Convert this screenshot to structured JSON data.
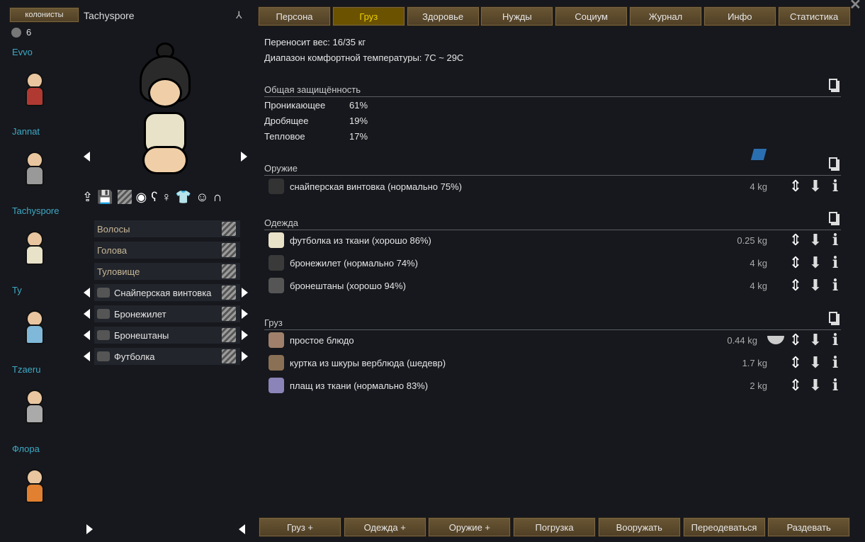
{
  "left": {
    "colonists_button": "колонисты",
    "count": "6",
    "colonists": [
      "Evvo",
      "Jannat",
      "Tachyspore",
      "Ty",
      "Tzaeru",
      "Флора"
    ]
  },
  "pawn": {
    "name": "Tachyspore",
    "slots": [
      {
        "label": "Волосы",
        "equipped": false
      },
      {
        "label": "Голова",
        "equipped": false
      },
      {
        "label": "Туловище",
        "equipped": false
      },
      {
        "label": "Снайперская винтовка",
        "equipped": true
      },
      {
        "label": "Бронежилет",
        "equipped": true
      },
      {
        "label": "Бронештаны",
        "equipped": true
      },
      {
        "label": "Футболка",
        "equipped": true
      }
    ]
  },
  "tabs": [
    {
      "label": "Персона"
    },
    {
      "label": "Груз",
      "active": true
    },
    {
      "label": "Здоровье"
    },
    {
      "label": "Нужды"
    },
    {
      "label": "Социум"
    },
    {
      "label": "Журнал"
    },
    {
      "label": "Инфо"
    },
    {
      "label": "Статистика"
    }
  ],
  "gear": {
    "carry": "Переносит вес: 16/35 кг",
    "comfort": "Диапазон комфортной температуры: 7C ~ 29C",
    "armor_title": "Общая защищённость",
    "armor": [
      {
        "label": "Проникающее",
        "value": "61%"
      },
      {
        "label": "Дробящее",
        "value": "19%"
      },
      {
        "label": "Тепловое",
        "value": "17%"
      }
    ],
    "weapons_title": "Оружие",
    "weapons": [
      {
        "name": "снайперская винтовка (нормально 75%)",
        "weight": "4 kg"
      }
    ],
    "apparel_title": "Одежда",
    "apparel": [
      {
        "name": "футболка из ткани (хорошо 86%)",
        "weight": "0.25 kg",
        "color": "#e8e2c8"
      },
      {
        "name": "бронежилет (нормально 74%)",
        "weight": "4 kg",
        "color": "#3a3a3a"
      },
      {
        "name": "бронештаны (хорошо 94%)",
        "weight": "4 kg",
        "color": "#555"
      }
    ],
    "inventory_title": "Груз",
    "inventory": [
      {
        "name": "простое блюдо",
        "weight": "0.44 kg",
        "color": "#a0806a"
      },
      {
        "name": "куртка из шкуры верблюда (шедевр)",
        "weight": "1.7 kg",
        "color": "#8a7055"
      },
      {
        "name": "плащ из ткани (нормально 83%)",
        "weight": "2 kg",
        "color": "#8a84b8"
      }
    ]
  },
  "bottom": [
    "Груз +",
    "Одежда +",
    "Оружие +",
    "Погрузка",
    "Вооружать",
    "Переодеваться",
    "Раздевать"
  ],
  "colors": {
    "accent": "#3fa9c5",
    "tab_active_text": "#f0d000"
  }
}
